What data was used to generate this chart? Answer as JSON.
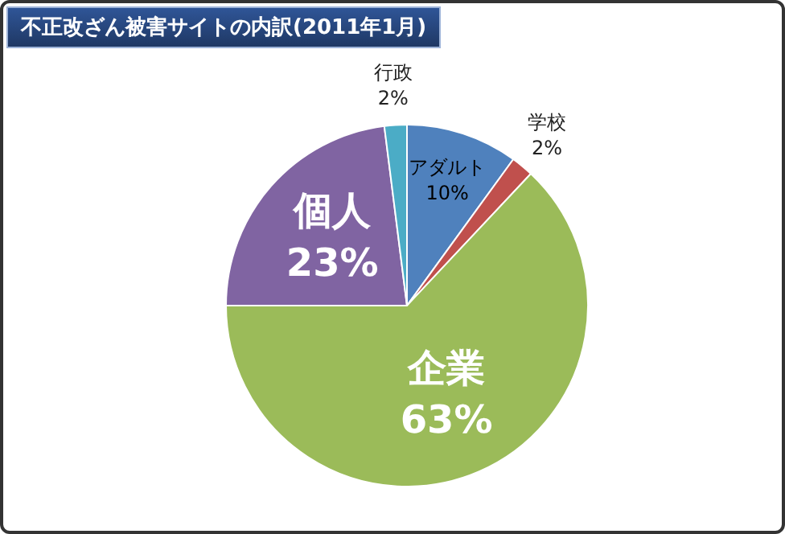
{
  "chart_data": {
    "type": "pie",
    "title": "不正改ざん被害サイトの内訳(2011年1月)",
    "categories": [
      "アダルト",
      "学校",
      "企業",
      "個人",
      "行政"
    ],
    "values": [
      10,
      2,
      63,
      23,
      2
    ],
    "colors": [
      "#4f81bd",
      "#c0504d",
      "#9bbb59",
      "#8064a2",
      "#4bacc6"
    ],
    "value_labels": [
      "10%",
      "2%",
      "63%",
      "23%",
      "2%"
    ],
    "legend": false
  }
}
